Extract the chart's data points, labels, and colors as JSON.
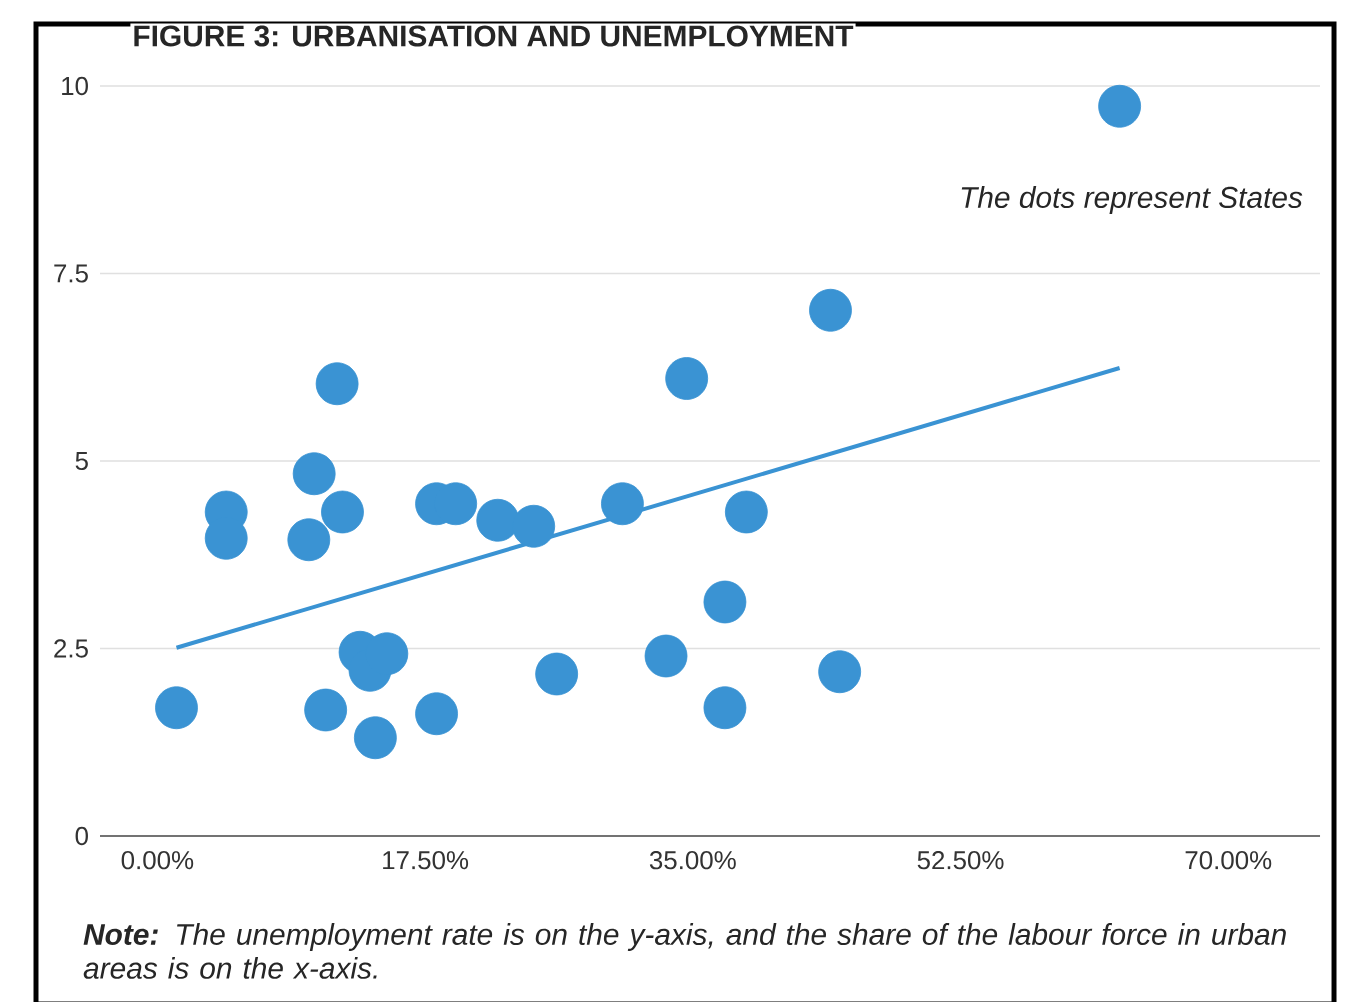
{
  "chart_data": {
    "type": "scatter",
    "title": "FIGURE 3: URBANISATION AND UNEMPLOYMENT",
    "annotations": [
      "The dots represent States",
      "**Note:** The unemployment rate is on the y-axis, and the share of the labour force in urban areas is on the x-axis."
    ],
    "xlim": [
      -3.75,
      76
    ],
    "ylim": [
      0,
      10
    ],
    "xticks": [
      {
        "value": 0,
        "label": "0.00%"
      },
      {
        "value": 17.5,
        "label": "17.50%"
      },
      {
        "value": 35,
        "label": "35.00%"
      },
      {
        "value": 52.5,
        "label": "52.50%"
      },
      {
        "value": 70,
        "label": "70.00%"
      }
    ],
    "yticks": [
      0,
      2.5,
      5,
      7.5,
      10
    ],
    "grid": "y",
    "marker": "circle",
    "series": [
      {
        "color": "#3a93d3",
        "x": [
          1.25,
          4.5,
          4.5,
          9.9,
          10.25,
          11.75,
          12.1,
          11,
          13.25,
          13.9,
          15,
          14.25,
          18.25,
          18.25,
          19.5,
          22.25,
          24.6,
          26.1,
          30.4,
          33.25,
          34.6,
          38.5,
          37.1,
          37.1,
          44,
          44.6,
          62.9
        ],
        "values": [
          1.71,
          4.32,
          3.97,
          3.95,
          4.83,
          6.03,
          4.32,
          1.68,
          2.45,
          2.21,
          2.43,
          1.31,
          1.63,
          4.43,
          4.43,
          4.21,
          4.13,
          2.16,
          4.43,
          2.4,
          6.1,
          4.32,
          3.12,
          1.71,
          7.01,
          2.19,
          9.73
        ]
      },
      {
        "type": "line",
        "marker": "none",
        "color": "#3a93d3",
        "x": [
          1.25,
          62.9
        ],
        "values": [
          2.51,
          6.24
        ]
      }
    ]
  }
}
